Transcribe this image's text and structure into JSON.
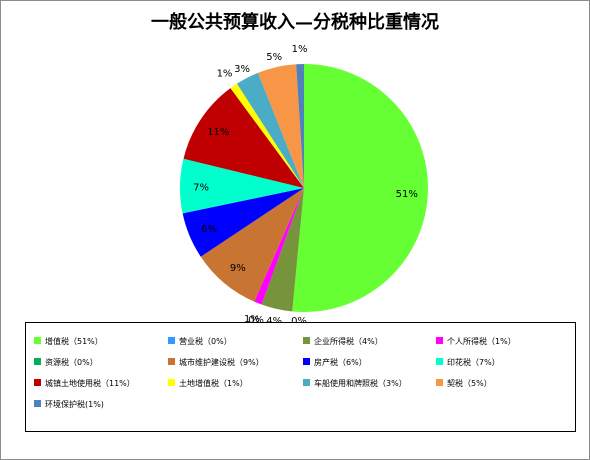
{
  "chart_data": {
    "type": "pie",
    "title": "一般公共预算收入—分税种比重情况",
    "slices": [
      {
        "label": "增值税",
        "legend": "增值税（51%）",
        "value": 51,
        "display": "51%",
        "color": "#66ff33"
      },
      {
        "label": "营业税",
        "legend": "营业税（0%）",
        "value": 0,
        "display": "0%",
        "color": "#3399ff"
      },
      {
        "label": "企业所得税",
        "legend": "企业所得税（4%）",
        "value": 4,
        "display": "4%",
        "color": "#77933c"
      },
      {
        "label": "个人所得税",
        "legend": "个人所得税（1%）",
        "value": 1,
        "display": "1%",
        "color": "#ff00ff"
      },
      {
        "label": "资源税",
        "legend": "资源税（0%）",
        "value": 0,
        "display": "0%",
        "color": "#00b050"
      },
      {
        "label": "城市维护建设税",
        "legend": "城市维护建设税（9%）",
        "value": 9,
        "display": "9%",
        "color": "#c87533"
      },
      {
        "label": "房产税",
        "legend": "房产税（6%）",
        "value": 6,
        "display": "6%",
        "color": "#0000ff"
      },
      {
        "label": "印花税",
        "legend": "印花税（7%）",
        "value": 7,
        "display": "7%",
        "color": "#00ffcc"
      },
      {
        "label": "城镇土地使用税",
        "legend": "城镇土地使用税（11%）",
        "value": 11,
        "display": "11%",
        "color": "#c00000"
      },
      {
        "label": "土地增值税",
        "legend": "土地增值税（1%）",
        "value": 1,
        "display": "1%",
        "color": "#ffff00"
      },
      {
        "label": "车船使用和牌照税",
        "legend": "车船使用和牌照税（3%）",
        "value": 3,
        "display": "3%",
        "color": "#4bacc6"
      },
      {
        "label": "契税",
        "legend": "契税（5%）",
        "value": 5,
        "display": "5%",
        "color": "#f79646"
      },
      {
        "label": "环境保护税",
        "legend": "环境保护税(1%)",
        "value": 1,
        "display": "1%",
        "color": "#4f81bd"
      }
    ]
  }
}
